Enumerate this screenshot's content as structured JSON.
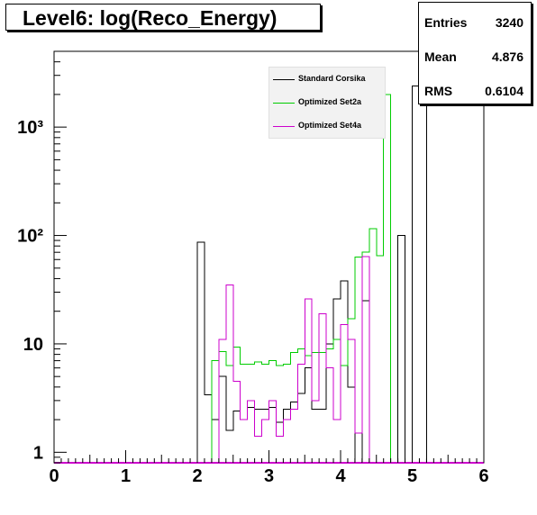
{
  "title": "Level6:  log(Reco_Energy)",
  "stats": [
    {
      "label": "Entries",
      "value": "3240"
    },
    {
      "label": "Mean",
      "value": "4.876"
    },
    {
      "label": "RMS",
      "value": "0.6104"
    }
  ],
  "chart_data": {
    "type": "histogram",
    "title": "Level6:  log(Reco_Energy)",
    "xlabel": "",
    "ylabel": "",
    "xlim": [
      0,
      6
    ],
    "ylim": [
      0.8,
      5000
    ],
    "yscale": "log",
    "grid": false,
    "legend_position": "top-right",
    "x_ticks": [
      "0",
      "1",
      "2",
      "3",
      "4",
      "5",
      "6"
    ],
    "y_ticks": [
      {
        "value": 1,
        "label": "1"
      },
      {
        "value": 10,
        "label": "10"
      },
      {
        "value": 100,
        "label": "10²"
      },
      {
        "value": 1000,
        "label": "10³"
      }
    ],
    "bin_width": 0.1,
    "series": [
      {
        "name": "Standard Corsika",
        "color": "#000000",
        "bins": [
          {
            "x": 2.0,
            "y": 87
          },
          {
            "x": 2.1,
            "y": 3.4
          },
          {
            "x": 2.2,
            "y": 2.0
          },
          {
            "x": 2.3,
            "y": 5.0
          },
          {
            "x": 2.4,
            "y": 1.6
          },
          {
            "x": 2.5,
            "y": 2.4
          },
          {
            "x": 2.6,
            "y": 2.0
          },
          {
            "x": 2.7,
            "y": 2.6
          },
          {
            "x": 2.8,
            "y": 2.5
          },
          {
            "x": 2.9,
            "y": 2.5
          },
          {
            "x": 3.0,
            "y": 2.6
          },
          {
            "x": 3.1,
            "y": 1.9
          },
          {
            "x": 3.2,
            "y": 2.5
          },
          {
            "x": 3.3,
            "y": 2.9
          },
          {
            "x": 3.4,
            "y": 3.5
          },
          {
            "x": 3.5,
            "y": 6.0
          },
          {
            "x": 3.6,
            "y": 2.5
          },
          {
            "x": 3.7,
            "y": 2.5
          },
          {
            "x": 3.8,
            "y": 10
          },
          {
            "x": 3.9,
            "y": 26
          },
          {
            "x": 4.0,
            "y": 38
          },
          {
            "x": 4.1,
            "y": 4.0
          },
          {
            "x": 4.2,
            "y": 0.8
          },
          {
            "x": 4.3,
            "y": 25
          },
          {
            "x": 4.4,
            "y": 0.8
          },
          {
            "x": 4.5,
            "y": 0.8
          },
          {
            "x": 4.6,
            "y": 0.8
          },
          {
            "x": 4.7,
            "y": 0.8
          },
          {
            "x": 4.8,
            "y": 100
          },
          {
            "x": 4.9,
            "y": 0.8
          },
          {
            "x": 5.0,
            "y": 2400
          },
          {
            "x": 5.1,
            "y": 5000
          }
        ]
      },
      {
        "name": "Optimized Set2a",
        "color": "#00cc00",
        "bins": [
          {
            "x": 2.2,
            "y": 7.0
          },
          {
            "x": 2.3,
            "y": 8.5
          },
          {
            "x": 2.4,
            "y": 6.3
          },
          {
            "x": 2.5,
            "y": 9.3
          },
          {
            "x": 2.6,
            "y": 6.5
          },
          {
            "x": 2.7,
            "y": 6.5
          },
          {
            "x": 2.8,
            "y": 6.8
          },
          {
            "x": 2.9,
            "y": 6.5
          },
          {
            "x": 3.0,
            "y": 7.0
          },
          {
            "x": 3.1,
            "y": 6.3
          },
          {
            "x": 3.2,
            "y": 6.5
          },
          {
            "x": 3.3,
            "y": 8.3
          },
          {
            "x": 3.4,
            "y": 9.0
          },
          {
            "x": 3.5,
            "y": 7.8
          },
          {
            "x": 3.6,
            "y": 8.3
          },
          {
            "x": 3.7,
            "y": 8.3
          },
          {
            "x": 3.8,
            "y": 9.0
          },
          {
            "x": 3.9,
            "y": 11.0
          },
          {
            "x": 4.0,
            "y": 6.3
          },
          {
            "x": 4.1,
            "y": 17
          },
          {
            "x": 4.2,
            "y": 63
          },
          {
            "x": 4.3,
            "y": 70
          },
          {
            "x": 4.4,
            "y": 115
          },
          {
            "x": 4.5,
            "y": 65
          },
          {
            "x": 4.6,
            "y": 2000
          }
        ]
      },
      {
        "name": "Optimized Set4a",
        "color": "#cc00cc",
        "bins": [
          {
            "x": 2.3,
            "y": 11
          },
          {
            "x": 2.4,
            "y": 35
          },
          {
            "x": 2.5,
            "y": 4.5
          },
          {
            "x": 2.6,
            "y": 2.0
          },
          {
            "x": 2.7,
            "y": 3.0
          },
          {
            "x": 2.8,
            "y": 1.4
          },
          {
            "x": 2.9,
            "y": 2.0
          },
          {
            "x": 3.0,
            "y": 3.0
          },
          {
            "x": 3.1,
            "y": 1.4
          },
          {
            "x": 3.2,
            "y": 2.0
          },
          {
            "x": 3.3,
            "y": 2.5
          },
          {
            "x": 3.4,
            "y": 6.5
          },
          {
            "x": 3.5,
            "y": 26
          },
          {
            "x": 3.6,
            "y": 3.0
          },
          {
            "x": 3.7,
            "y": 19
          },
          {
            "x": 3.8,
            "y": 6.0
          },
          {
            "x": 3.9,
            "y": 2.0
          },
          {
            "x": 4.0,
            "y": 15
          },
          {
            "x": 4.1,
            "y": 11
          },
          {
            "x": 4.2,
            "y": 1.5
          },
          {
            "x": 4.3,
            "y": 64
          }
        ]
      }
    ]
  }
}
